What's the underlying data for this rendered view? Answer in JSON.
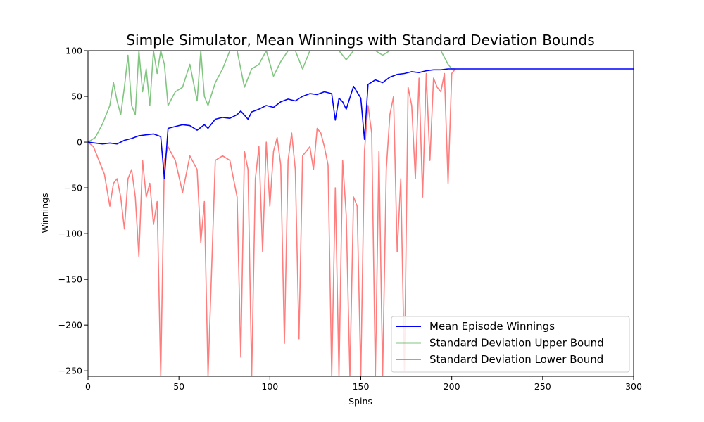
{
  "chart_data": {
    "type": "line",
    "title": "Simple Simulator, Mean Winnings with Standard Deviation Bounds",
    "xlabel": "Spins",
    "ylabel": "Winnings",
    "xlim": [
      0,
      300
    ],
    "ylim": [
      -256,
      100
    ],
    "xticks": [
      0,
      50,
      100,
      150,
      200,
      250,
      300
    ],
    "yticks": [
      -250,
      -200,
      -150,
      -100,
      -50,
      0,
      50,
      100
    ],
    "grid": false,
    "legend_position": "lower-right",
    "series": [
      {
        "name": "Mean Episode Winnings",
        "color": "#0000ff",
        "x": [
          0,
          4,
          8,
          12,
          16,
          20,
          24,
          28,
          32,
          36,
          40,
          42,
          44,
          48,
          52,
          56,
          60,
          64,
          66,
          70,
          74,
          78,
          82,
          84,
          88,
          90,
          94,
          98,
          102,
          106,
          110,
          114,
          118,
          122,
          126,
          130,
          134,
          136,
          138,
          140,
          142,
          146,
          150,
          152,
          154,
          158,
          162,
          166,
          170,
          174,
          178,
          182,
          186,
          190,
          194,
          198,
          202,
          300
        ],
        "y": [
          0,
          -1,
          -2,
          -1,
          -2,
          2,
          4,
          7,
          8,
          9,
          6,
          -40,
          15,
          17,
          19,
          18,
          13,
          19,
          15,
          25,
          27,
          26,
          30,
          34,
          25,
          33,
          36,
          40,
          38,
          44,
          47,
          45,
          50,
          53,
          52,
          55,
          53,
          24,
          48,
          44,
          36,
          61,
          48,
          3,
          63,
          68,
          65,
          71,
          74,
          75,
          77,
          76,
          78,
          79,
          79,
          80,
          80,
          80
        ]
      },
      {
        "name": "Standard Deviation Upper Bound",
        "color": "#2ca02c",
        "x": [
          0,
          4,
          8,
          12,
          14,
          16,
          18,
          20,
          22,
          24,
          26,
          28,
          30,
          32,
          34,
          36,
          38,
          40,
          42,
          44,
          48,
          52,
          56,
          60,
          62,
          64,
          66,
          70,
          74,
          78,
          82,
          86,
          90,
          94,
          98,
          102,
          106,
          110,
          114,
          118,
          122,
          126,
          130,
          134,
          138,
          142,
          146,
          150,
          154,
          158,
          162,
          166,
          170,
          174,
          178,
          182,
          186,
          190,
          194,
          198,
          200,
          202
        ],
        "y": [
          0,
          5,
          20,
          40,
          65,
          45,
          30,
          60,
          95,
          40,
          30,
          100,
          55,
          80,
          40,
          100,
          75,
          100,
          85,
          40,
          55,
          60,
          85,
          45,
          100,
          50,
          40,
          65,
          80,
          100,
          100,
          60,
          80,
          85,
          100,
          72,
          88,
          100,
          100,
          80,
          100,
          100,
          100,
          100,
          100,
          90,
          100,
          100,
          100,
          100,
          95,
          100,
          100,
          100,
          100,
          100,
          100,
          100,
          100,
          85,
          80,
          80
        ]
      },
      {
        "name": "Standard Deviation Lower Bound",
        "color": "#ff6666",
        "x": [
          0,
          3,
          6,
          9,
          12,
          14,
          16,
          18,
          20,
          22,
          24,
          26,
          28,
          30,
          32,
          34,
          36,
          38,
          40,
          42,
          44,
          48,
          52,
          56,
          60,
          62,
          64,
          66,
          70,
          74,
          78,
          82,
          84,
          86,
          88,
          90,
          92,
          94,
          96,
          98,
          100,
          102,
          104,
          106,
          108,
          110,
          112,
          114,
          116,
          118,
          120,
          122,
          124,
          126,
          128,
          130,
          132,
          134,
          136,
          138,
          140,
          142,
          144,
          146,
          148,
          150,
          152,
          154,
          156,
          158,
          160,
          162,
          164,
          166,
          168,
          170,
          172,
          174,
          176,
          178,
          180,
          182,
          184,
          186,
          188,
          190,
          192,
          194,
          196,
          198,
          200,
          202
        ],
        "y": [
          0,
          -5,
          -20,
          -35,
          -70,
          -45,
          -40,
          -60,
          -95,
          -40,
          -30,
          -60,
          -125,
          -20,
          -60,
          -45,
          -90,
          -65,
          -256,
          -20,
          -5,
          -20,
          -55,
          -15,
          -30,
          -110,
          -65,
          -256,
          -20,
          -15,
          -20,
          -60,
          -235,
          -10,
          -30,
          -256,
          -40,
          -5,
          -120,
          0,
          -70,
          -10,
          5,
          -25,
          -220,
          -20,
          10,
          -30,
          -215,
          -15,
          -10,
          -5,
          -30,
          15,
          10,
          -5,
          -25,
          -256,
          -50,
          -256,
          -20,
          -80,
          -256,
          -60,
          -70,
          -256,
          -10,
          40,
          10,
          -256,
          -10,
          -256,
          -30,
          30,
          50,
          -120,
          -40,
          -250,
          60,
          40,
          -40,
          70,
          -60,
          75,
          -20,
          70,
          60,
          55,
          75,
          -45,
          75,
          80
        ]
      }
    ]
  }
}
